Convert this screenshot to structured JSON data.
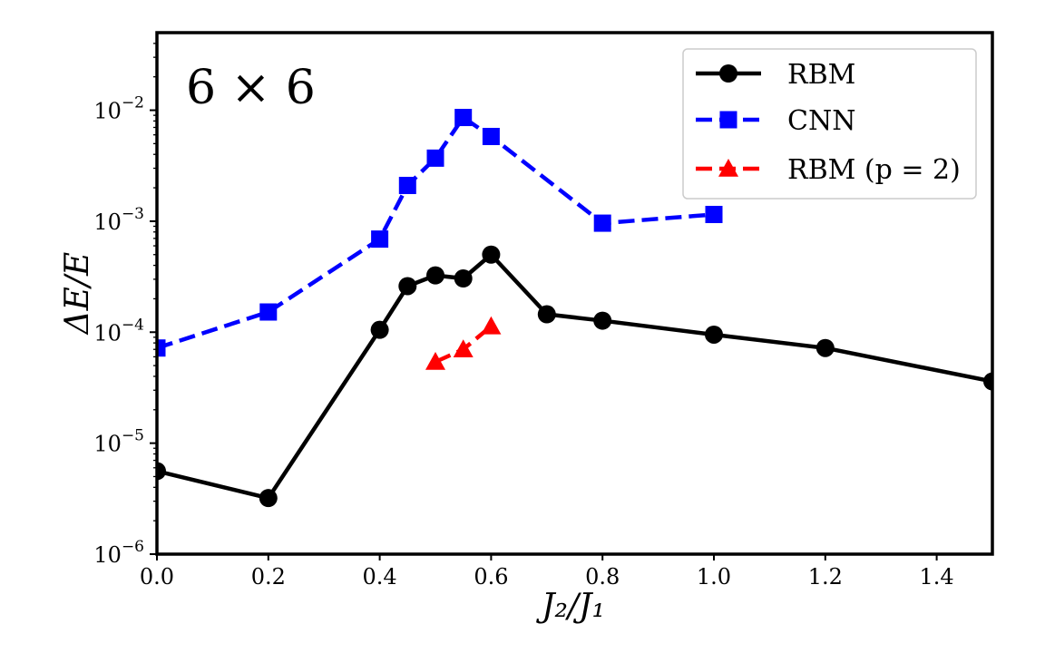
{
  "chart_data": {
    "type": "line",
    "title": "",
    "xlabel": "J₂/J₁",
    "ylabel": "ΔE/E",
    "xlim": [
      0.0,
      1.5
    ],
    "ylim": [
      1e-06,
      0.05
    ],
    "yscale": "log",
    "xticks": [
      "0.0",
      "0.2",
      "0.4",
      "0.6",
      "0.8",
      "1.0",
      "1.2",
      "1.4"
    ],
    "yticks": [
      {
        "base": "10",
        "exp": "−6"
      },
      {
        "base": "10",
        "exp": "−5"
      },
      {
        "base": "10",
        "exp": "−4"
      },
      {
        "base": "10",
        "exp": "−3"
      },
      {
        "base": "10",
        "exp": "−2"
      }
    ],
    "annotation": "6 × 6",
    "legend_position": "top-right",
    "grid": false,
    "series": [
      {
        "name": "RBM",
        "color": "#000000",
        "marker": "circle",
        "linestyle": "solid",
        "x": [
          0.0,
          0.2,
          0.4,
          0.45,
          0.5,
          0.55,
          0.6,
          0.7,
          0.8,
          1.0,
          1.2,
          1.5
        ],
        "y": [
          5.6e-06,
          3.2e-06,
          0.000105,
          0.00026,
          0.000325,
          0.000305,
          0.0005,
          0.000145,
          0.000127,
          9.5e-05,
          7.2e-05,
          3.6e-05
        ]
      },
      {
        "name": "CNN",
        "color": "#0000ff",
        "marker": "square",
        "linestyle": "dashed",
        "x": [
          0.0,
          0.2,
          0.4,
          0.45,
          0.5,
          0.55,
          0.6,
          0.8,
          1.0
        ],
        "y": [
          7.2e-05,
          0.000152,
          0.00069,
          0.0021,
          0.0037,
          0.0086,
          0.0058,
          0.00096,
          0.00115
        ]
      },
      {
        "name": "RBM (p = 2)",
        "color": "#ff0000",
        "marker": "triangle",
        "linestyle": "dashed",
        "x": [
          0.5,
          0.55,
          0.6
        ],
        "y": [
          5.4e-05,
          7e-05,
          0.000113
        ]
      }
    ]
  }
}
